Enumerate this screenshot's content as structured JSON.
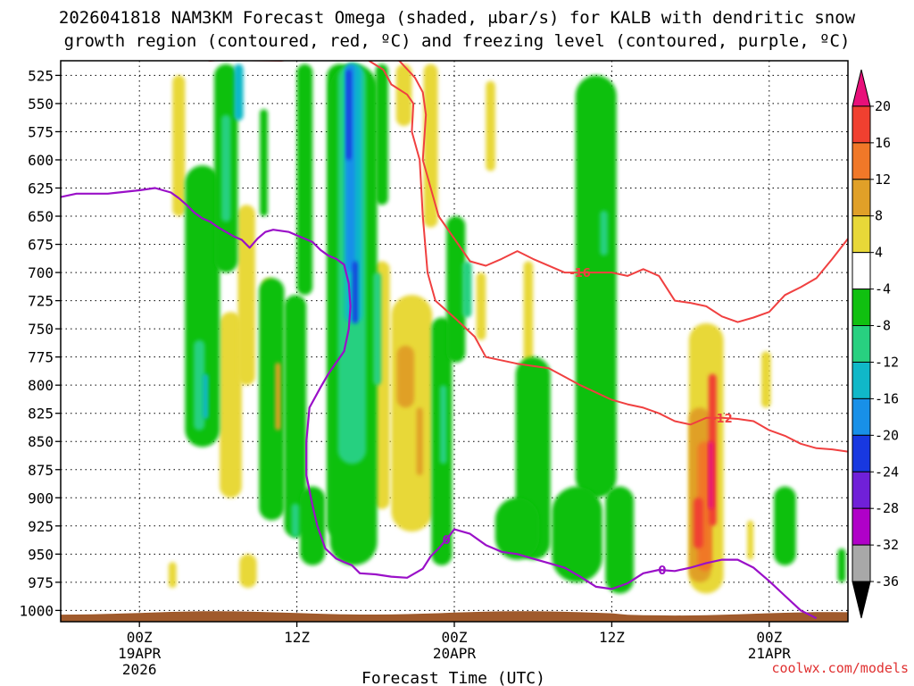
{
  "chart_data": {
    "type": "heatmap",
    "title_line1": "2026041818 NAM3KM Forecast Omega (shaded, μbar/s) for KALB with dendritic snow",
    "title_line2": "growth region (contoured, red, ºC) and freezing level (contoured, purple, ºC)",
    "xlabel": "Forecast Time (UTC)",
    "credit": "coolwx.com/models",
    "x_range_hours": [
      -5,
      45
    ],
    "y_range_mb": [
      512,
      1010
    ],
    "pressure_levels": [
      525,
      550,
      575,
      600,
      625,
      650,
      675,
      700,
      725,
      750,
      775,
      800,
      825,
      850,
      875,
      900,
      925,
      950,
      975,
      1000
    ],
    "time_ticks": [
      {
        "hour": 0,
        "line1": "00Z",
        "line2": "19APR",
        "line3": "2026"
      },
      {
        "hour": 10,
        "line1": "12Z",
        "line2": "",
        "line3": ""
      },
      {
        "hour": 20,
        "line1": "00Z",
        "line2": "20APR",
        "line3": ""
      },
      {
        "hour": 30,
        "line1": "12Z",
        "line2": "",
        "line3": ""
      },
      {
        "hour": 40,
        "line1": "00Z",
        "line2": "21APR",
        "line3": ""
      }
    ],
    "colorbar": {
      "labels": [
        "20",
        "16",
        "12",
        "8",
        "4",
        "-4",
        "-8",
        "-12",
        "-16",
        "-20",
        "-24",
        "-28",
        "-32",
        "-36"
      ],
      "colors": [
        "#e8107a",
        "#f04030",
        "#f07828",
        "#e0a028",
        "#e8d838",
        "#ffffff",
        "#10c010",
        "#28d080",
        "#10b8c8",
        "#1890e8",
        "#1838e0",
        "#7020d8",
        "#b000c8",
        "#a8a8a8",
        "#000000"
      ]
    },
    "omega_features": [
      {
        "hour": 2.5,
        "p_top": 525,
        "p_bot": 650,
        "width_h": 0.8,
        "level": 4
      },
      {
        "hour": 4.0,
        "p_top": 605,
        "p_bot": 855,
        "width_h": 2.2,
        "level": -8
      },
      {
        "hour": 3.8,
        "p_top": 760,
        "p_bot": 840,
        "width_h": 0.7,
        "level": -12
      },
      {
        "hour": 4.2,
        "p_top": 790,
        "p_bot": 830,
        "width_h": 0.35,
        "level": -16
      },
      {
        "hour": 5.5,
        "p_top": 515,
        "p_bot": 700,
        "width_h": 1.5,
        "level": -8
      },
      {
        "hour": 5.5,
        "p_top": 560,
        "p_bot": 655,
        "width_h": 0.6,
        "level": -12
      },
      {
        "hour": 6.3,
        "p_top": 515,
        "p_bot": 565,
        "width_h": 0.6,
        "level": -16
      },
      {
        "hour": 5.8,
        "p_top": 735,
        "p_bot": 900,
        "width_h": 1.4,
        "level": 4
      },
      {
        "hour": 6.8,
        "p_top": 640,
        "p_bot": 800,
        "width_h": 1.1,
        "level": 4
      },
      {
        "hour": 8.4,
        "p_top": 705,
        "p_bot": 920,
        "width_h": 1.6,
        "level": -8
      },
      {
        "hour": 8.2,
        "p_top": 705,
        "p_bot": 900,
        "width_h": 0.8,
        "level": 4
      },
      {
        "hour": 8.8,
        "p_top": 780,
        "p_bot": 840,
        "width_h": 0.35,
        "level": 8
      },
      {
        "hour": 7.9,
        "p_top": 555,
        "p_bot": 650,
        "width_h": 0.5,
        "level": -8
      },
      {
        "hour": 2.1,
        "p_top": 957,
        "p_bot": 980,
        "width_h": 0.5,
        "level": 4
      },
      {
        "hour": 6.9,
        "p_top": 950,
        "p_bot": 980,
        "width_h": 1.1,
        "level": 4
      },
      {
        "hour": 9.9,
        "p_top": 720,
        "p_bot": 935,
        "width_h": 1.4,
        "level": -8
      },
      {
        "hour": 9.9,
        "p_top": 905,
        "p_bot": 935,
        "width_h": 0.5,
        "level": -12
      },
      {
        "hour": 11.0,
        "p_top": 890,
        "p_bot": 960,
        "width_h": 1.6,
        "level": -8
      },
      {
        "hour": 10.5,
        "p_top": 515,
        "p_bot": 720,
        "width_h": 1.0,
        "level": -8
      },
      {
        "hour": 12.7,
        "p_top": 515,
        "p_bot": 935,
        "width_h": 1.6,
        "level": -8
      },
      {
        "hour": 13.6,
        "p_top": 515,
        "p_bot": 960,
        "width_h": 3.0,
        "level": -8
      },
      {
        "hour": 13.5,
        "p_top": 515,
        "p_bot": 870,
        "width_h": 1.8,
        "level": -12
      },
      {
        "hour": 13.6,
        "p_top": 515,
        "p_bot": 745,
        "width_h": 1.1,
        "level": -16
      },
      {
        "hour": 13.4,
        "p_top": 515,
        "p_bot": 700,
        "width_h": 0.6,
        "level": -20
      },
      {
        "hour": 13.3,
        "p_top": 520,
        "p_bot": 600,
        "width_h": 0.3,
        "level": -24
      },
      {
        "hour": 13.7,
        "p_top": 690,
        "p_bot": 745,
        "width_h": 0.3,
        "level": -24
      },
      {
        "hour": 15.4,
        "p_top": 515,
        "p_bot": 640,
        "width_h": 0.8,
        "level": -8
      },
      {
        "hour": 15.1,
        "p_top": 700,
        "p_bot": 800,
        "width_h": 0.5,
        "level": -12
      },
      {
        "hour": 15.4,
        "p_top": 690,
        "p_bot": 910,
        "width_h": 1.0,
        "level": 4
      },
      {
        "hour": 16.8,
        "p_top": 515,
        "p_bot": 570,
        "width_h": 1.0,
        "level": 4
      },
      {
        "hour": 17.3,
        "p_top": 720,
        "p_bot": 930,
        "width_h": 2.6,
        "level": 4
      },
      {
        "hour": 16.9,
        "p_top": 765,
        "p_bot": 820,
        "width_h": 1.1,
        "level": 8
      },
      {
        "hour": 17.8,
        "p_top": 820,
        "p_bot": 880,
        "width_h": 0.4,
        "level": 8
      },
      {
        "hour": 18.5,
        "p_top": 515,
        "p_bot": 660,
        "width_h": 0.9,
        "level": 4
      },
      {
        "hour": 19.2,
        "p_top": 740,
        "p_bot": 960,
        "width_h": 1.3,
        "level": -8
      },
      {
        "hour": 19.3,
        "p_top": 800,
        "p_bot": 870,
        "width_h": 0.45,
        "level": -12
      },
      {
        "hour": 20.1,
        "p_top": 650,
        "p_bot": 780,
        "width_h": 1.2,
        "level": -8
      },
      {
        "hour": 20.8,
        "p_top": 690,
        "p_bot": 740,
        "width_h": 0.6,
        "level": -12
      },
      {
        "hour": 21.7,
        "p_top": 700,
        "p_bot": 760,
        "width_h": 0.6,
        "level": 4
      },
      {
        "hour": 22.3,
        "p_top": 530,
        "p_bot": 610,
        "width_h": 0.6,
        "level": 4
      },
      {
        "hour": 24.7,
        "p_top": 690,
        "p_bot": 845,
        "width_h": 0.6,
        "level": 4
      },
      {
        "hour": 25.0,
        "p_top": 775,
        "p_bot": 955,
        "width_h": 2.2,
        "level": -8
      },
      {
        "hour": 24.0,
        "p_top": 900,
        "p_bot": 955,
        "width_h": 2.8,
        "level": -8
      },
      {
        "hour": 29.0,
        "p_top": 525,
        "p_bot": 900,
        "width_h": 2.6,
        "level": -8
      },
      {
        "hour": 29.5,
        "p_top": 645,
        "p_bot": 685,
        "width_h": 0.5,
        "level": -12
      },
      {
        "hour": 27.8,
        "p_top": 890,
        "p_bot": 975,
        "width_h": 3.2,
        "level": -8
      },
      {
        "hour": 30.5,
        "p_top": 890,
        "p_bot": 985,
        "width_h": 1.8,
        "level": -8
      },
      {
        "hour": 36.0,
        "p_top": 745,
        "p_bot": 985,
        "width_h": 2.2,
        "level": 4
      },
      {
        "hour": 35.6,
        "p_top": 820,
        "p_bot": 975,
        "width_h": 1.4,
        "level": 8
      },
      {
        "hour": 35.9,
        "p_top": 850,
        "p_bot": 965,
        "width_h": 0.9,
        "level": 12
      },
      {
        "hour": 35.5,
        "p_top": 900,
        "p_bot": 945,
        "width_h": 0.6,
        "level": 16
      },
      {
        "hour": 36.4,
        "p_top": 790,
        "p_bot": 925,
        "width_h": 0.5,
        "level": 16
      },
      {
        "hour": 36.3,
        "p_top": 850,
        "p_bot": 910,
        "width_h": 0.25,
        "level": 20
      },
      {
        "hour": 38.8,
        "p_top": 920,
        "p_bot": 955,
        "width_h": 0.4,
        "level": 4
      },
      {
        "hour": 39.8,
        "p_top": 770,
        "p_bot": 820,
        "width_h": 0.6,
        "level": 4
      },
      {
        "hour": 41.0,
        "p_top": 890,
        "p_bot": 960,
        "width_h": 1.4,
        "level": -8
      },
      {
        "hour": 44.6,
        "p_top": 945,
        "p_bot": 975,
        "width_h": 0.5,
        "level": -8
      }
    ],
    "red_contour_main": {
      "label": "-12",
      "points": [
        [
          -5,
          507
        ],
        [
          2.0,
          510
        ],
        [
          4.0,
          511
        ],
        [
          9.0,
          512
        ],
        [
          10.0,
          510
        ],
        [
          12.0,
          508
        ],
        [
          14.0,
          507
        ],
        [
          15.5,
          520
        ],
        [
          16.0,
          533
        ],
        [
          17.0,
          542
        ],
        [
          17.4,
          550
        ],
        [
          17.3,
          575
        ],
        [
          17.8,
          600
        ],
        [
          18.0,
          650
        ],
        [
          18.3,
          700
        ],
        [
          18.8,
          725
        ],
        [
          20.0,
          740
        ],
        [
          21.3,
          757
        ],
        [
          22.0,
          775
        ],
        [
          24.0,
          781
        ],
        [
          26.0,
          785
        ],
        [
          28.0,
          800
        ],
        [
          30.0,
          813
        ],
        [
          31.0,
          817
        ],
        [
          32.0,
          820
        ],
        [
          33.0,
          825
        ],
        [
          34.0,
          832
        ],
        [
          35.0,
          835
        ],
        [
          36.0,
          829
        ],
        [
          37.0,
          829
        ],
        [
          38.0,
          830
        ],
        [
          39.0,
          832
        ],
        [
          40.0,
          840
        ],
        [
          41.0,
          845
        ],
        [
          42.0,
          852
        ],
        [
          43.0,
          856
        ],
        [
          44.0,
          857
        ],
        [
          45.0,
          859
        ]
      ]
    },
    "red_contour_upper": {
      "label": "-16",
      "points": [
        [
          15.0,
          507
        ],
        [
          16.5,
          512
        ],
        [
          17.5,
          527
        ],
        [
          18.0,
          540
        ],
        [
          18.2,
          560
        ],
        [
          18.0,
          600
        ],
        [
          19.0,
          650
        ],
        [
          20.0,
          670
        ],
        [
          21.0,
          690
        ],
        [
          22.0,
          694
        ],
        [
          23.0,
          688
        ],
        [
          24.0,
          681
        ],
        [
          25.0,
          688
        ],
        [
          27.0,
          700
        ],
        [
          28.0,
          700
        ],
        [
          29.0,
          700
        ],
        [
          30.0,
          700
        ],
        [
          31.0,
          703
        ],
        [
          32.0,
          697
        ],
        [
          33.0,
          703
        ],
        [
          34.0,
          725
        ],
        [
          35.0,
          727
        ],
        [
          36.0,
          730
        ],
        [
          37.0,
          739
        ],
        [
          38.0,
          744
        ],
        [
          39.0,
          740
        ],
        [
          40.0,
          735
        ],
        [
          41.0,
          720
        ],
        [
          42.0,
          713
        ],
        [
          43.0,
          705
        ],
        [
          44.0,
          688
        ],
        [
          45.0,
          670
        ]
      ]
    },
    "red_contour_topleft": {
      "label": "",
      "points": [
        [
          2.5,
          507
        ],
        [
          4.5,
          512
        ],
        [
          7.0,
          509
        ],
        [
          9.5,
          511
        ],
        [
          10.0,
          507
        ]
      ]
    },
    "purple_contour": {
      "label": "0",
      "points": [
        [
          -5,
          633
        ],
        [
          -4.0,
          630
        ],
        [
          -2.0,
          630
        ],
        [
          0.0,
          627
        ],
        [
          1.0,
          625
        ],
        [
          2.0,
          629
        ],
        [
          2.5,
          634
        ],
        [
          3.0,
          640
        ],
        [
          3.5,
          647
        ],
        [
          4.0,
          652
        ],
        [
          4.5,
          655
        ],
        [
          5.0,
          660
        ],
        [
          5.5,
          664
        ],
        [
          6.0,
          668
        ],
        [
          6.5,
          671
        ],
        [
          7.0,
          678
        ],
        [
          7.5,
          670
        ],
        [
          8.0,
          664
        ],
        [
          8.5,
          662
        ],
        [
          9.5,
          664
        ],
        [
          10.0,
          667
        ],
        [
          11.0,
          673
        ],
        [
          11.5,
          680
        ],
        [
          12.0,
          685
        ],
        [
          12.5,
          688
        ],
        [
          13.0,
          693
        ],
        [
          13.3,
          710
        ],
        [
          13.4,
          730
        ],
        [
          13.3,
          750
        ],
        [
          13.0,
          770
        ],
        [
          12.0,
          790
        ],
        [
          11.5,
          802
        ],
        [
          10.8,
          820
        ],
        [
          10.6,
          850
        ],
        [
          10.6,
          880
        ],
        [
          11.0,
          907
        ],
        [
          11.3,
          925
        ],
        [
          11.8,
          945
        ],
        [
          12.5,
          954
        ],
        [
          13.0,
          957
        ],
        [
          13.5,
          960
        ],
        [
          14.0,
          967
        ],
        [
          15.0,
          968
        ],
        [
          16.0,
          970
        ],
        [
          17.0,
          971
        ],
        [
          18.0,
          963
        ],
        [
          18.5,
          952
        ],
        [
          19.0,
          945
        ],
        [
          19.5,
          937
        ],
        [
          20.0,
          928
        ],
        [
          21.0,
          932
        ],
        [
          22.0,
          942
        ],
        [
          23.0,
          948
        ],
        [
          24.0,
          950
        ],
        [
          25.0,
          954
        ],
        [
          26.0,
          958
        ],
        [
          27.0,
          962
        ],
        [
          28.0,
          970
        ],
        [
          29.0,
          979
        ],
        [
          30.0,
          981
        ],
        [
          31.0,
          976
        ],
        [
          32.0,
          967
        ],
        [
          33.0,
          964
        ],
        [
          34.0,
          965
        ],
        [
          35.0,
          962
        ],
        [
          36.0,
          958
        ],
        [
          37.0,
          955
        ],
        [
          38.0,
          955
        ],
        [
          39.0,
          962
        ],
        [
          40.0,
          974
        ],
        [
          41.0,
          987
        ],
        [
          42.0,
          1000
        ],
        [
          43.0,
          1007
        ]
      ]
    },
    "terrain_color": "#a05a2c"
  }
}
